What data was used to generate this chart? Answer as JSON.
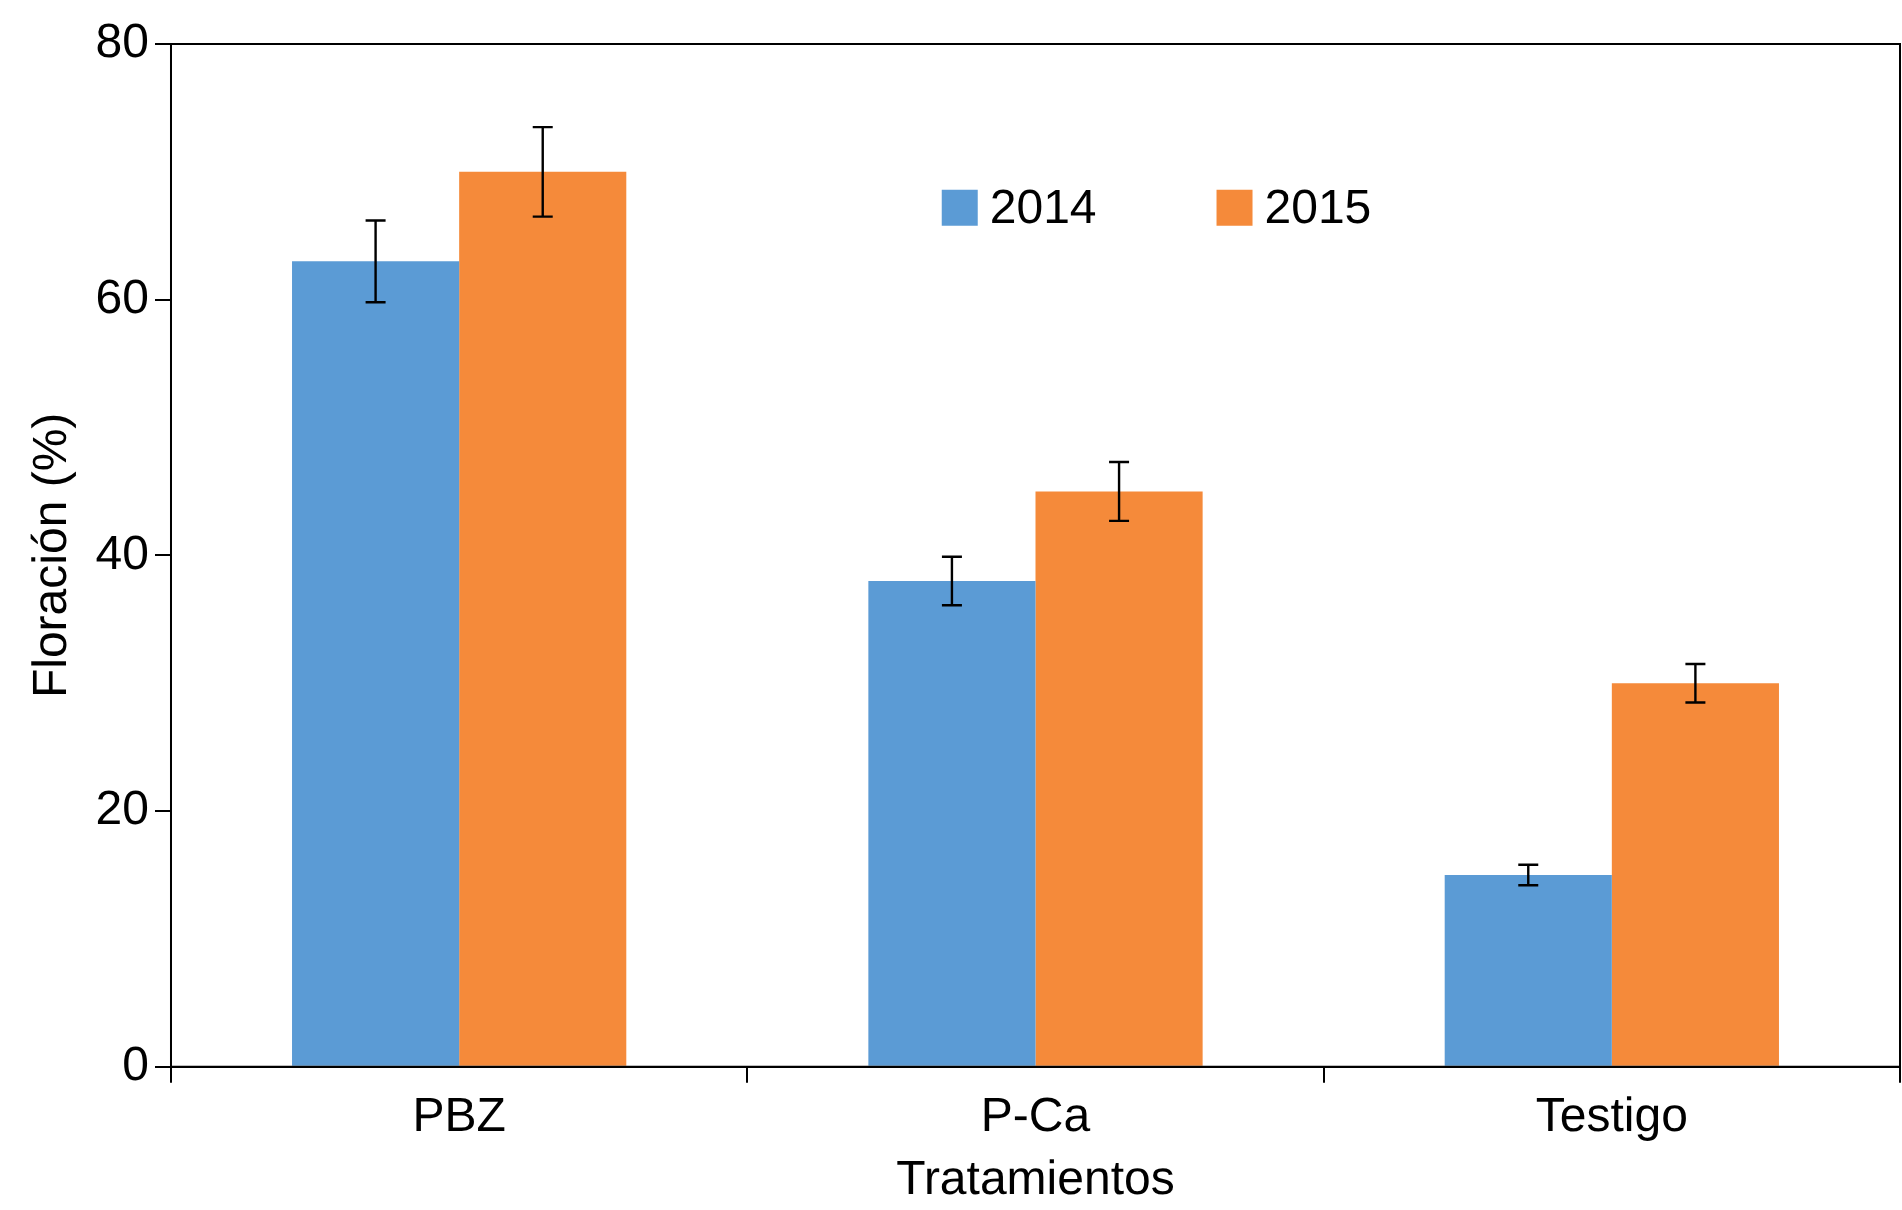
{
  "chart_data": {
    "type": "bar",
    "xlabel": "Tratamientos",
    "ylabel": "Floración (%)",
    "categories": [
      "PBZ",
      "P-Ca",
      "Testigo"
    ],
    "series": [
      {
        "name": "2014",
        "color": "#5b9bd5",
        "values": [
          63,
          38,
          15
        ],
        "errors": [
          3.2,
          1.9,
          0.8
        ]
      },
      {
        "name": "2015",
        "color": "#f58a3a",
        "values": [
          70,
          45,
          30
        ],
        "errors": [
          3.5,
          2.3,
          1.5
        ]
      }
    ],
    "ylim": [
      0,
      80
    ],
    "yticks": [
      0,
      20,
      40,
      60,
      80
    ],
    "grid": false,
    "legend": "top"
  }
}
